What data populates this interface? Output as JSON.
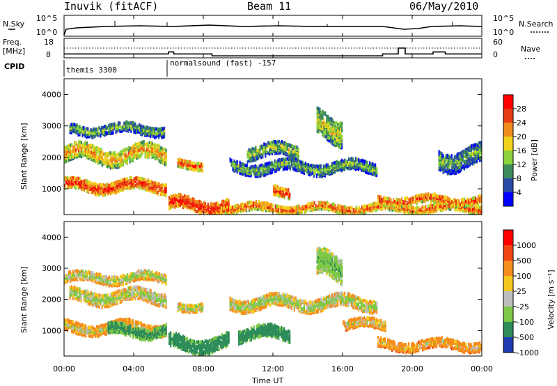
{
  "header": {
    "station": "Inuvik (fitACF)",
    "beam": "Beam 11",
    "date": "06/May/2010"
  },
  "panels": {
    "nsky": {
      "left_label": "N.Sky",
      "right_label": "N.Search",
      "left_ticks": [
        "10^5",
        "10^0"
      ],
      "right_ticks": [
        "10^5",
        "10^0"
      ]
    },
    "freq": {
      "left_label_1": "Freq.",
      "left_label_2": "[MHz]",
      "right_label": "Nave",
      "left_ticks": [
        "18",
        "8"
      ],
      "right_ticks": [
        "60",
        "0"
      ]
    },
    "cpid": {
      "label": "CPID",
      "modes": [
        "themis 3300",
        "normalsound (fast) -157"
      ]
    }
  },
  "power_colorbar": {
    "label": "Power [dB]",
    "ticks": [
      "28",
      "24",
      "20",
      "16",
      "12",
      "8",
      "4"
    ],
    "colors": [
      "#0000ff",
      "#2a4aa8",
      "#3c8c5a",
      "#8cd23c",
      "#f0d21e",
      "#f08c1e",
      "#e63c14",
      "#ff0000"
    ]
  },
  "velocity_colorbar": {
    "label": "Velocity [m s⁻¹]",
    "ticks": [
      "1000",
      "500",
      "100",
      "25",
      "-25",
      "-100",
      "-500",
      "-1000"
    ],
    "colors": [
      "#1e3cb4",
      "#2d8c5a",
      "#7dc846",
      "#bebebe",
      "#f5c81e",
      "#f58c1e",
      "#f04614",
      "#ff0000"
    ]
  },
  "axes": {
    "ylabel": "Slant Range [km]",
    "xlabel": "Time UT",
    "y_ticks": [
      "4000",
      "3000",
      "2000",
      "1000"
    ],
    "x_ticks": [
      "00:00",
      "04:00",
      "08:00",
      "12:00",
      "16:00",
      "20:00",
      "00:00"
    ]
  },
  "chart_data": {
    "type": "heatmap",
    "x_range_hours": [
      0,
      24
    ],
    "y_range_km": [
      180,
      4500
    ],
    "power_bands": [
      {
        "t_start": 0.0,
        "t_end": 5.9,
        "range_km": 2100,
        "thickness_km": 500,
        "power_db": 16
      },
      {
        "t_start": 0.0,
        "t_end": 5.9,
        "range_km": 1100,
        "thickness_km": 350,
        "power_db": 22
      },
      {
        "t_start": 0.3,
        "t_end": 5.8,
        "range_km": 2900,
        "thickness_km": 300,
        "power_db": 8
      },
      {
        "t_start": 6.0,
        "t_end": 9.5,
        "range_km": 500,
        "thickness_km": 400,
        "power_db": 24
      },
      {
        "t_start": 6.5,
        "t_end": 8.0,
        "range_km": 1800,
        "thickness_km": 250,
        "power_db": 20
      },
      {
        "t_start": 9.5,
        "t_end": 18.0,
        "range_km": 1700,
        "thickness_km": 350,
        "power_db": 8
      },
      {
        "t_start": 10.5,
        "t_end": 13.5,
        "range_km": 2200,
        "thickness_km": 400,
        "power_db": 10
      },
      {
        "t_start": 12.0,
        "t_end": 13.0,
        "range_km": 900,
        "thickness_km": 300,
        "power_db": 22
      },
      {
        "t_start": 9.0,
        "t_end": 24.0,
        "range_km": 400,
        "thickness_km": 250,
        "power_db": 20
      },
      {
        "t_start": 14.5,
        "t_end": 16.0,
        "range_km": 3000,
        "thickness_km": 800,
        "power_db": 12
      },
      {
        "t_start": 18.0,
        "t_end": 24.0,
        "range_km": 650,
        "thickness_km": 250,
        "power_db": 20
      },
      {
        "t_start": 21.5,
        "t_end": 24.0,
        "range_km": 2000,
        "thickness_km": 600,
        "power_db": 8
      }
    ],
    "velocity_bands": [
      {
        "t_start": 0.0,
        "t_end": 5.9,
        "range_km": 2700,
        "thickness_km": 300,
        "velocity": 0
      },
      {
        "t_start": 0.3,
        "t_end": 5.9,
        "range_km": 2100,
        "thickness_km": 400,
        "velocity": 0
      },
      {
        "t_start": 0.0,
        "t_end": 5.9,
        "range_km": 1100,
        "thickness_km": 350,
        "velocity": -100
      },
      {
        "t_start": 2.5,
        "t_end": 5.9,
        "range_km": 1000,
        "thickness_km": 350,
        "velocity": 300
      },
      {
        "t_start": 6.0,
        "t_end": 9.5,
        "range_km": 600,
        "thickness_km": 450,
        "velocity": 400
      },
      {
        "t_start": 6.5,
        "t_end": 8.0,
        "range_km": 1800,
        "thickness_km": 250,
        "velocity": 0
      },
      {
        "t_start": 9.5,
        "t_end": 18.0,
        "range_km": 1900,
        "thickness_km": 400,
        "velocity": 0
      },
      {
        "t_start": 10.0,
        "t_end": 13.0,
        "range_km": 900,
        "thickness_km": 400,
        "velocity": 400
      },
      {
        "t_start": 14.5,
        "t_end": 16.0,
        "range_km": 3000,
        "thickness_km": 800,
        "velocity": 150
      },
      {
        "t_start": 18.0,
        "t_end": 24.0,
        "range_km": 550,
        "thickness_km": 300,
        "velocity": -150
      },
      {
        "t_start": 16.0,
        "t_end": 18.5,
        "range_km": 1200,
        "thickness_km": 300,
        "velocity": -100
      }
    ],
    "frequency_mhz": [
      {
        "t": 0.0,
        "v": 10
      },
      {
        "t": 6.0,
        "v": 10
      },
      {
        "t": 6.0,
        "v": 11
      },
      {
        "t": 6.3,
        "v": 11
      },
      {
        "t": 6.3,
        "v": 10
      },
      {
        "t": 8.5,
        "v": 10
      },
      {
        "t": 8.5,
        "v": 9
      },
      {
        "t": 18.3,
        "v": 9
      },
      {
        "t": 18.3,
        "v": 10
      },
      {
        "t": 19.2,
        "v": 10
      },
      {
        "t": 19.2,
        "v": 13
      },
      {
        "t": 19.6,
        "v": 13
      },
      {
        "t": 19.6,
        "v": 10
      },
      {
        "t": 21.2,
        "v": 10
      },
      {
        "t": 21.2,
        "v": 11
      },
      {
        "t": 21.9,
        "v": 11
      },
      {
        "t": 21.9,
        "v": 10
      },
      {
        "t": 24.0,
        "v": 10
      }
    ]
  }
}
